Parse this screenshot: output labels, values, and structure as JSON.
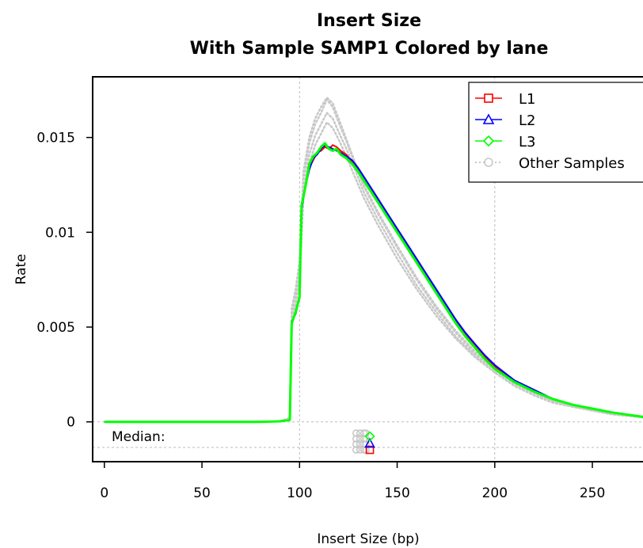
{
  "chart_data": {
    "type": "line",
    "title": "Insert Size",
    "subtitle": "With Sample SAMP1 Colored by lane",
    "xlabel": "Insert Size (bp)",
    "ylabel": "Rate",
    "xlim": [
      -6,
      280
    ],
    "ylim": [
      -0.0021,
      0.0182
    ],
    "x_ticks": [
      0,
      50,
      100,
      150,
      200,
      250
    ],
    "x_tick_labels": [
      "0",
      "50",
      "100",
      "150",
      "200",
      "250"
    ],
    "y_ticks": [
      0,
      0.005,
      0.01,
      0.015
    ],
    "y_tick_labels": [
      "0",
      "0.005",
      "0.01",
      "0.015"
    ],
    "grid": {
      "vertical": [
        100,
        200
      ],
      "horizontal": [
        0,
        -0.00135
      ]
    },
    "median_label": "Median:",
    "legend_position": "top-right",
    "legend": [
      {
        "label": "L1",
        "color": "#ff0000",
        "marker": "square",
        "style": "solid"
      },
      {
        "label": "L2",
        "color": "#0000ff",
        "marker": "triangle",
        "style": "solid"
      },
      {
        "label": "L3",
        "color": "#00ff00",
        "marker": "diamond",
        "style": "solid"
      },
      {
        "label": "Other Samples",
        "color": "#c8c8c8",
        "marker": "circle",
        "style": "dotted"
      }
    ],
    "series": [
      {
        "name": "L1",
        "color": "#ff0000",
        "width": 2,
        "median": 136,
        "x": [
          0,
          20,
          40,
          60,
          80,
          90,
          95,
          96,
          98,
          100,
          101,
          103,
          105,
          107,
          109,
          111,
          113,
          115,
          117,
          119,
          121,
          124,
          127,
          130,
          135,
          140,
          145,
          150,
          155,
          160,
          165,
          170,
          175,
          180,
          185,
          190,
          195,
          200,
          210,
          220,
          230,
          240,
          250,
          260,
          270,
          280
        ],
        "y": [
          0,
          0,
          0,
          0,
          0,
          3e-05,
          0.0001,
          0.0052,
          0.0058,
          0.0065,
          0.0113,
          0.0125,
          0.0134,
          0.0138,
          0.0142,
          0.0143,
          0.0145,
          0.0144,
          0.0146,
          0.0145,
          0.0143,
          0.0141,
          0.0137,
          0.0133,
          0.0125,
          0.0117,
          0.0109,
          0.0101,
          0.0093,
          0.0085,
          0.0077,
          0.0069,
          0.0061,
          0.0053,
          0.0046,
          0.004,
          0.0034,
          0.0029,
          0.0022,
          0.0016,
          0.0012,
          0.0009,
          0.0007,
          0.0005,
          0.00035,
          0.0002
        ]
      },
      {
        "name": "L2",
        "color": "#0000ff",
        "width": 2,
        "median": 136,
        "x": [
          0,
          20,
          40,
          60,
          80,
          90,
          95,
          96,
          98,
          100,
          101,
          103,
          105,
          107,
          109,
          111,
          113,
          115,
          117,
          119,
          121,
          124,
          127,
          130,
          135,
          140,
          145,
          150,
          155,
          160,
          165,
          170,
          175,
          180,
          185,
          190,
          195,
          200,
          210,
          220,
          230,
          240,
          250,
          260,
          270,
          280
        ],
        "y": [
          0,
          0,
          0,
          0,
          0,
          3e-05,
          0.0001,
          0.0053,
          0.0057,
          0.0066,
          0.0112,
          0.0124,
          0.0133,
          0.0139,
          0.0141,
          0.0144,
          0.0146,
          0.0145,
          0.0144,
          0.0143,
          0.0142,
          0.014,
          0.0138,
          0.0134,
          0.0126,
          0.0118,
          0.011,
          0.0102,
          0.0094,
          0.0086,
          0.0078,
          0.007,
          0.0062,
          0.0054,
          0.0047,
          0.0041,
          0.0035,
          0.003,
          0.0022,
          0.0017,
          0.0012,
          0.0009,
          0.0007,
          0.0005,
          0.00035,
          0.0002
        ]
      },
      {
        "name": "L3",
        "color": "#00ff00",
        "width": 3,
        "median": 136,
        "x": [
          0,
          20,
          40,
          60,
          80,
          90,
          95,
          96,
          98,
          100,
          101,
          103,
          105,
          107,
          109,
          111,
          113,
          115,
          117,
          119,
          121,
          124,
          127,
          130,
          135,
          140,
          145,
          150,
          155,
          160,
          165,
          170,
          175,
          180,
          185,
          190,
          195,
          200,
          210,
          220,
          230,
          240,
          250,
          260,
          270,
          280
        ],
        "y": [
          0,
          0,
          0,
          0,
          0,
          3e-05,
          0.0001,
          0.0052,
          0.0058,
          0.0066,
          0.0114,
          0.0124,
          0.0136,
          0.014,
          0.0142,
          0.0145,
          0.0147,
          0.0144,
          0.0143,
          0.0144,
          0.0141,
          0.0139,
          0.0136,
          0.0132,
          0.0124,
          0.0116,
          0.0108,
          0.01,
          0.0092,
          0.0084,
          0.0076,
          0.0068,
          0.006,
          0.0052,
          0.0045,
          0.0039,
          0.0033,
          0.0028,
          0.0021,
          0.0016,
          0.0012,
          0.0009,
          0.0007,
          0.0005,
          0.00035,
          0.0002
        ]
      }
    ],
    "other_samples": {
      "color": "#c8c8c8",
      "medians": [
        129,
        131,
        133,
        134
      ],
      "curves": [
        {
          "x": [
            90,
            95,
            96,
            98,
            100,
            102,
            105,
            108,
            111,
            114,
            117,
            120,
            124,
            128,
            133,
            140,
            150,
            160,
            170,
            180,
            190,
            200,
            210,
            220,
            230,
            240,
            250,
            260,
            270,
            280
          ],
          "y": [
            3e-05,
            0.0002,
            0.0058,
            0.0067,
            0.0082,
            0.0128,
            0.0147,
            0.0157,
            0.0163,
            0.017,
            0.0166,
            0.0158,
            0.0148,
            0.0137,
            0.0124,
            0.011,
            0.0092,
            0.0075,
            0.006,
            0.0047,
            0.0036,
            0.0028,
            0.0021,
            0.0015,
            0.0011,
            0.0008,
            0.0006,
            0.0004,
            0.0003,
            0.0002
          ]
        },
        {
          "x": [
            90,
            95,
            96,
            98,
            100,
            102,
            105,
            108,
            111,
            114,
            117,
            120,
            124,
            128,
            133,
            140,
            150,
            160,
            170,
            180,
            190,
            200,
            210,
            220,
            230,
            240,
            250,
            260,
            270,
            280
          ],
          "y": [
            3e-05,
            0.0002,
            0.0056,
            0.0064,
            0.0078,
            0.0122,
            0.0141,
            0.0151,
            0.0157,
            0.0163,
            0.016,
            0.0153,
            0.0144,
            0.0134,
            0.0121,
            0.0107,
            0.0089,
            0.0072,
            0.0058,
            0.0045,
            0.0035,
            0.0027,
            0.002,
            0.0015,
            0.0011,
            0.0008,
            0.0006,
            0.0004,
            0.0003,
            0.0002
          ]
        },
        {
          "x": [
            90,
            95,
            96,
            98,
            100,
            102,
            105,
            108,
            111,
            114,
            117,
            120,
            124,
            128,
            133,
            140,
            150,
            160,
            170,
            180,
            190,
            200,
            210,
            220,
            230,
            240,
            250,
            260,
            270,
            280
          ],
          "y": [
            3e-05,
            0.0002,
            0.0054,
            0.0062,
            0.0074,
            0.0118,
            0.0136,
            0.0146,
            0.0152,
            0.0158,
            0.0155,
            0.0149,
            0.014,
            0.013,
            0.0118,
            0.0104,
            0.0086,
            0.007,
            0.0056,
            0.0044,
            0.0034,
            0.0026,
            0.0019,
            0.0014,
            0.001,
            0.0008,
            0.0006,
            0.0004,
            0.0003,
            0.0002
          ]
        },
        {
          "x": [
            90,
            95,
            96,
            98,
            100,
            102,
            105,
            108,
            111,
            114,
            117,
            120,
            124,
            128,
            133,
            140,
            150,
            160,
            170,
            180,
            190,
            200,
            210,
            220,
            230,
            240,
            250,
            260,
            270,
            280
          ],
          "y": [
            3e-05,
            0.0002,
            0.006,
            0.007,
            0.0085,
            0.0132,
            0.015,
            0.016,
            0.0166,
            0.0171,
            0.0168,
            0.016,
            0.0149,
            0.0138,
            0.0125,
            0.0111,
            0.0093,
            0.0076,
            0.0061,
            0.0048,
            0.0037,
            0.0029,
            0.0021,
            0.0016,
            0.0011,
            0.0008,
            0.0006,
            0.0004,
            0.0003,
            0.0002
          ]
        }
      ]
    }
  }
}
